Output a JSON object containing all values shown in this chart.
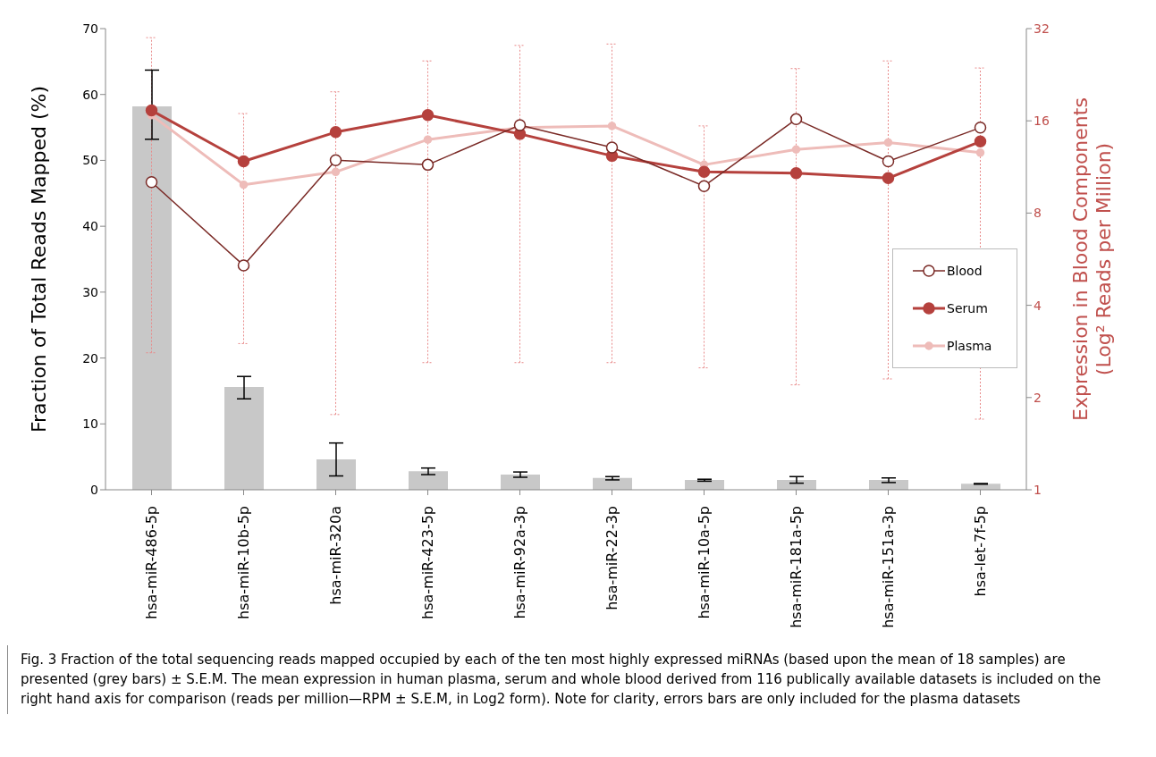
{
  "chart_data": {
    "type": "bar",
    "ylabel": "Fraction of Total Reads Mapped (%)",
    "y2label": "Expression in Blood Components\n(Log² Reads per Million)",
    "categories": [
      "hsa-miR-486-5p",
      "hsa-miR-10b-5p",
      "hsa-miR-320a",
      "hsa-miR-423-5p",
      "hsa-miR-92a-3p",
      "hsa-miR-22-3p",
      "hsa-miR-10a-5p",
      "hsa-miR-181a-5p",
      "hsa-miR-151a-3p",
      "hsa-let-7f-5p"
    ],
    "series": [
      {
        "color": "#c8c8c8",
        "values": [
          58.2,
          15.6,
          4.6,
          2.8,
          2.3,
          1.8,
          1.5,
          1.5,
          1.5,
          0.9
        ],
        "errors": [
          [
            53.2,
            63.7
          ],
          [
            13.8,
            17.2
          ],
          [
            2.1,
            7.1
          ],
          [
            2.3,
            3.3
          ],
          [
            1.9,
            2.7
          ],
          [
            1.5,
            2.0
          ],
          [
            1.3,
            1.6
          ],
          [
            1.0,
            2.0
          ],
          [
            1.1,
            1.8
          ],
          [
            0.85,
            0.95
          ]
        ]
      },
      {
        "type": "line",
        "name": "Blood",
        "axis": "y2",
        "color": "#7a2a26",
        "values": [
          10.1,
          5.4,
          11.9,
          11.5,
          15.5,
          13.1,
          9.8,
          16.2,
          11.8,
          15.2
        ]
      },
      {
        "type": "line",
        "name": "Serum",
        "axis": "y2",
        "color": "#b5413d",
        "values": [
          17.3,
          11.8,
          14.7,
          16.7,
          14.5,
          12.3,
          10.9,
          10.8,
          10.4,
          13.7
        ]
      },
      {
        "type": "line",
        "name": "Plasma",
        "axis": "y2",
        "color": "#eebcb9",
        "values": [
          16.7,
          9.9,
          10.9,
          13.9,
          15.2,
          15.4,
          11.5,
          12.9,
          13.6,
          12.6
        ],
        "errors": [
          [
            2.8,
            29.9
          ],
          [
            3.0,
            16.9
          ],
          [
            1.76,
            19.9
          ],
          [
            2.6,
            25.1
          ],
          [
            2.6,
            28.2
          ],
          [
            2.6,
            28.5
          ],
          [
            2.5,
            15.4
          ],
          [
            2.2,
            23.7
          ],
          [
            2.3,
            25.1
          ],
          [
            1.7,
            23.8
          ]
        ]
      }
    ],
    "ylim": [
      0,
      70
    ],
    "yticks": [
      0,
      10,
      20,
      30,
      40,
      50,
      60,
      70
    ],
    "y2lim": [
      1,
      32
    ],
    "y2ticks": [
      1,
      2,
      4,
      8,
      16,
      32
    ],
    "log": "y2",
    "marker": "circle",
    "legend": "center right",
    "grid": false,
    "annotations": [
      "Fig. 3  Fraction of the total sequencing reads mapped occupied by each of the ten most highly expressed miRNAs (based upon the mean of 18 samples) are presented (grey bars) ± S.E.M. The mean expression in human plasma, serum and whole blood derived from 116 publically available datasets is included on the right hand axis for comparison (reads per million—RPM ± S.E.M, in Log2 form). Note for clarity, errors bars are only included for the plasma datasets"
    ]
  }
}
